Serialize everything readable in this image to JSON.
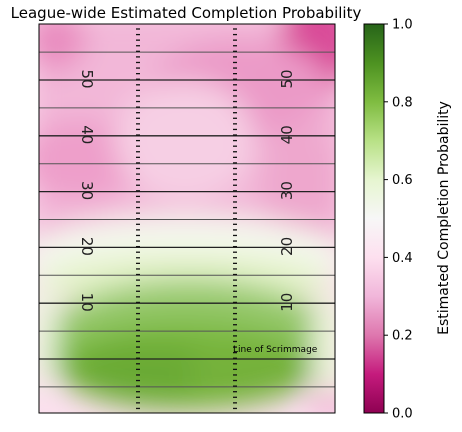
{
  "chart_data": {
    "type": "heatmap",
    "title": "League-wide Estimated Completion Probability",
    "field": {
      "yard_numbers": [
        "50",
        "40",
        "30",
        "20",
        "10"
      ],
      "yard_values": [
        50,
        40,
        30,
        20,
        10
      ],
      "annotation": "Line of Scrimmage"
    },
    "colorbar": {
      "label": "Estimated Completion Probability",
      "range": [
        0.0,
        1.0
      ],
      "ticks": [
        "0.0",
        "0.2",
        "0.4",
        "0.6",
        "0.8",
        "1.0"
      ],
      "tick_values": [
        0.0,
        0.2,
        0.4,
        0.6,
        0.8,
        1.0
      ],
      "colormap": "PiYG",
      "stops": [
        "#8e0152",
        "#c51b7d",
        "#de77ae",
        "#f1b6da",
        "#fde0ef",
        "#f7f7f7",
        "#e6f5d0",
        "#b8e186",
        "#7fbc41",
        "#4d9221",
        "#276419"
      ]
    },
    "grid": true
  }
}
